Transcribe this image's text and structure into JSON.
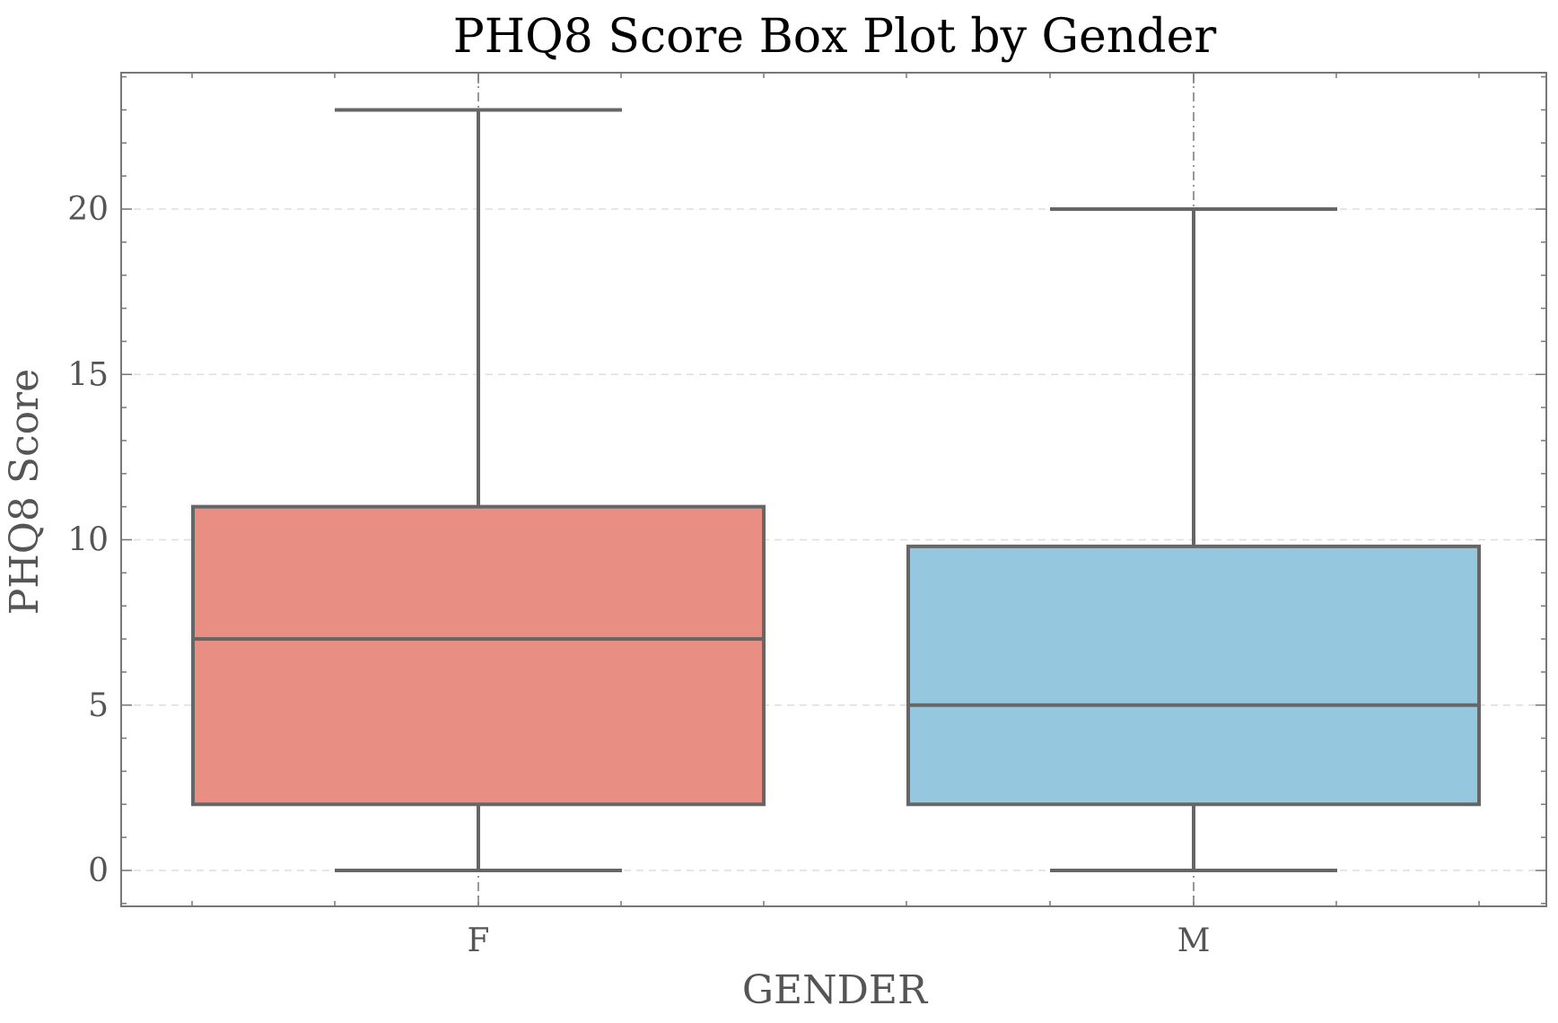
{
  "chart_data": {
    "type": "box",
    "title": "PHQ8 Score Box Plot by Gender",
    "xlabel": "GENDER",
    "ylabel": "PHQ8_Score",
    "ylabel_display": "PHQ8 Score",
    "categories": [
      "F",
      "M"
    ],
    "yticks": [
      0,
      5,
      10,
      15,
      20
    ],
    "ylim": [
      -1.1,
      24.2
    ],
    "grid": true,
    "boxes": [
      {
        "category": "F",
        "min": 0,
        "q1": 2,
        "median": 7,
        "q3": 11,
        "max": 23,
        "color": "#e88e82"
      },
      {
        "category": "M",
        "min": 0,
        "q1": 2,
        "median": 5,
        "q3": 9.8,
        "max": 20,
        "color": "#95c8de"
      }
    ]
  }
}
